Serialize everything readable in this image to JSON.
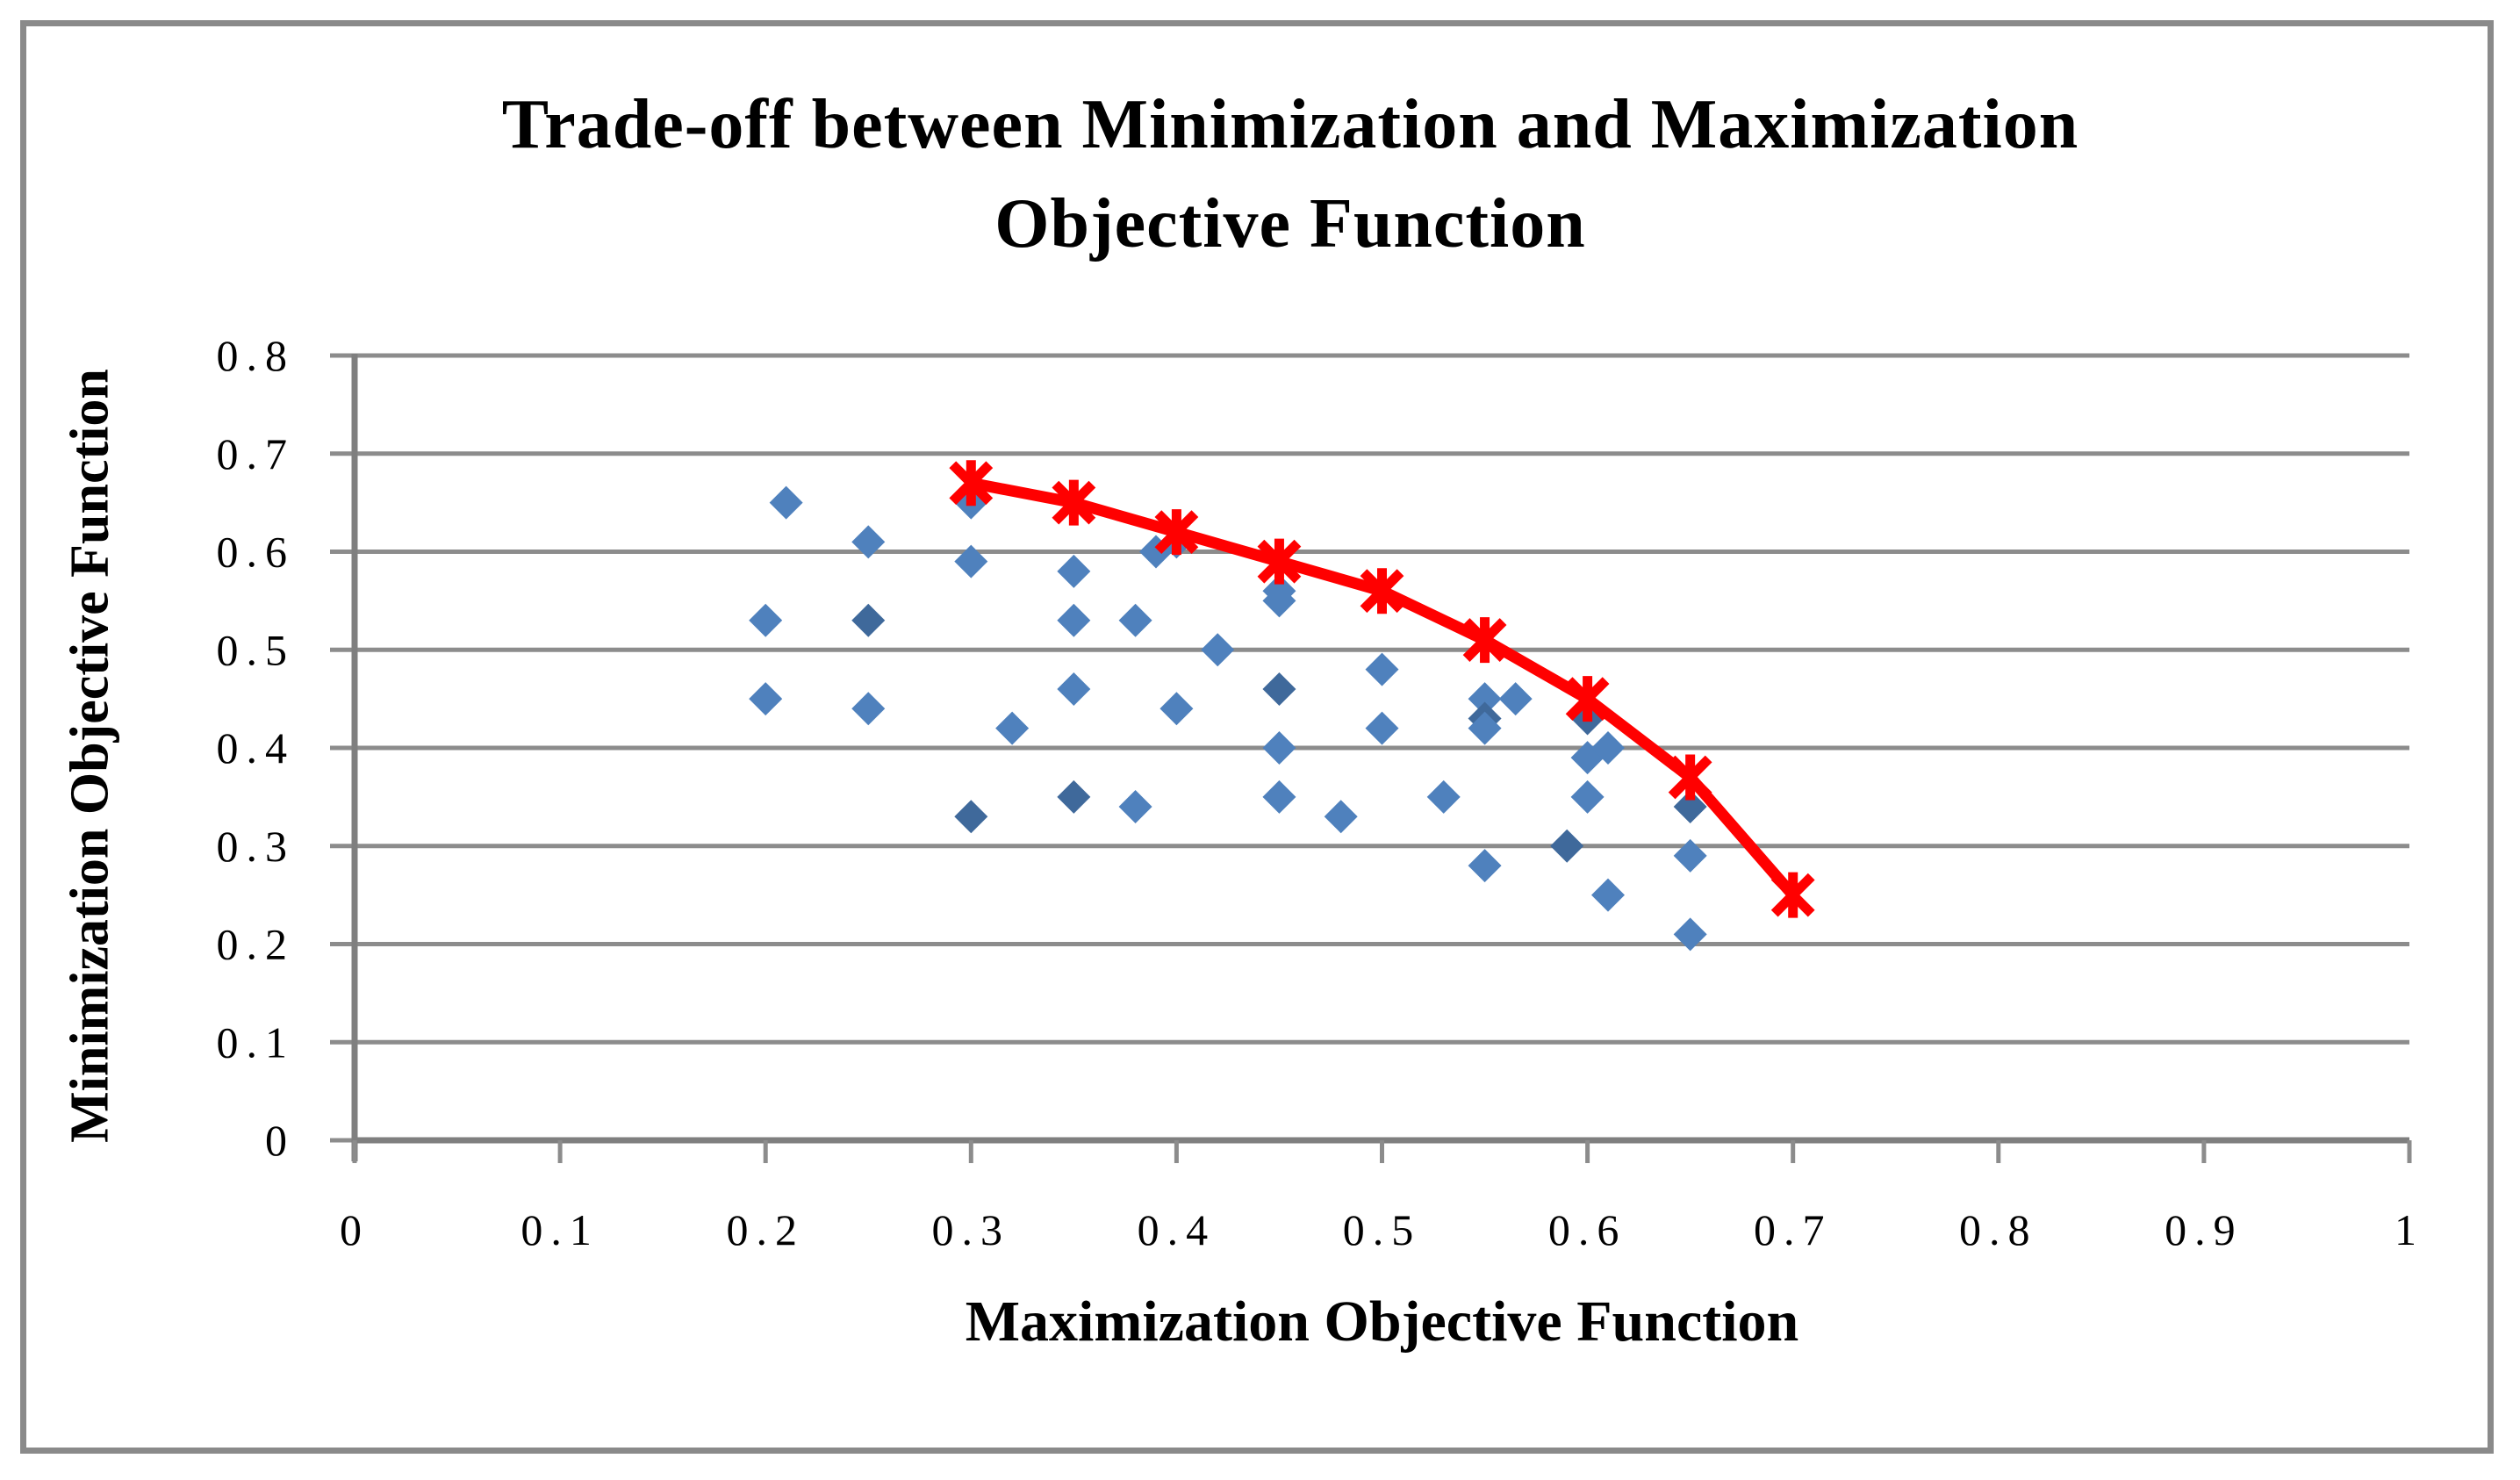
{
  "window": {
    "background": "#ffffff",
    "frame_color": "#8a8a8a"
  },
  "chart_data": {
    "type": "scatter",
    "title": "Trade-off between Minimization and Maximization Objective Function",
    "title_lines": [
      "Trade-off between Minimization and Maximization",
      "Objective Function"
    ],
    "xlabel": "Maximization Objective Function",
    "ylabel": "Minimization Objective Function",
    "xlim": [
      0,
      1
    ],
    "ylim": [
      0,
      0.8
    ],
    "x_ticks": [
      0,
      0.1,
      0.2,
      0.3,
      0.4,
      0.5,
      0.6,
      0.7,
      0.8,
      0.9,
      1
    ],
    "x_tick_labels": [
      "0",
      "0.1",
      "0.2",
      "0.3",
      "0.4",
      "0.5",
      "0.6",
      "0.7",
      "0.8",
      "0.9",
      "1"
    ],
    "y_ticks": [
      0,
      0.1,
      0.2,
      0.3,
      0.4,
      0.5,
      0.6,
      0.7,
      0.8
    ],
    "y_tick_labels": [
      "0",
      "0.1",
      "0.2",
      "0.3",
      "0.4",
      "0.5",
      "0.6",
      "0.7",
      "0.8"
    ],
    "grid": "horizontal-only",
    "legend": "none",
    "colors": {
      "scatter_fill": "#4F81BD",
      "scatter_fill_dark": "#3F699B",
      "line_color": "#FF0000",
      "grid_color": "#8C8C8C",
      "axis_color": "#7F7F7F",
      "text_color": "#000000"
    },
    "series": [
      {
        "name": "scatter_solutions",
        "type": "scatter",
        "marker": "diamond",
        "points": [
          [
            0.2,
            0.53,
            0
          ],
          [
            0.2,
            0.45,
            0
          ],
          [
            0.21,
            0.65,
            0
          ],
          [
            0.25,
            0.61,
            0
          ],
          [
            0.25,
            0.53,
            1
          ],
          [
            0.25,
            0.44,
            0
          ],
          [
            0.3,
            0.65,
            0
          ],
          [
            0.3,
            0.59,
            0
          ],
          [
            0.3,
            0.33,
            1
          ],
          [
            0.32,
            0.42,
            0
          ],
          [
            0.35,
            0.58,
            0
          ],
          [
            0.35,
            0.53,
            0
          ],
          [
            0.35,
            0.46,
            0
          ],
          [
            0.35,
            0.35,
            1
          ],
          [
            0.38,
            0.53,
            0
          ],
          [
            0.38,
            0.34,
            0
          ],
          [
            0.39,
            0.6,
            0
          ],
          [
            0.4,
            0.61,
            0
          ],
          [
            0.4,
            0.44,
            0
          ],
          [
            0.42,
            0.5,
            0
          ],
          [
            0.45,
            0.56,
            0
          ],
          [
            0.45,
            0.55,
            0
          ],
          [
            0.45,
            0.46,
            1
          ],
          [
            0.45,
            0.4,
            0
          ],
          [
            0.45,
            0.35,
            0
          ],
          [
            0.48,
            0.33,
            0
          ],
          [
            0.5,
            0.48,
            0
          ],
          [
            0.5,
            0.42,
            0
          ],
          [
            0.53,
            0.35,
            0
          ],
          [
            0.55,
            0.45,
            0
          ],
          [
            0.565,
            0.45,
            0
          ],
          [
            0.55,
            0.43,
            1
          ],
          [
            0.55,
            0.42,
            0
          ],
          [
            0.55,
            0.28,
            0
          ],
          [
            0.59,
            0.3,
            1
          ],
          [
            0.6,
            0.43,
            1
          ],
          [
            0.6,
            0.39,
            0
          ],
          [
            0.61,
            0.4,
            0
          ],
          [
            0.6,
            0.35,
            0
          ],
          [
            0.61,
            0.25,
            0
          ],
          [
            0.65,
            0.34,
            1
          ],
          [
            0.65,
            0.29,
            0
          ],
          [
            0.65,
            0.21,
            0
          ]
        ]
      },
      {
        "name": "pareto_frontier_line",
        "type": "line",
        "marker": "star",
        "points": [
          [
            0.3,
            0.67
          ],
          [
            0.35,
            0.65
          ],
          [
            0.4,
            0.62
          ],
          [
            0.45,
            0.59
          ],
          [
            0.5,
            0.56
          ],
          [
            0.55,
            0.51
          ],
          [
            0.6,
            0.45
          ],
          [
            0.65,
            0.37
          ],
          [
            0.7,
            0.25
          ]
        ]
      }
    ]
  }
}
